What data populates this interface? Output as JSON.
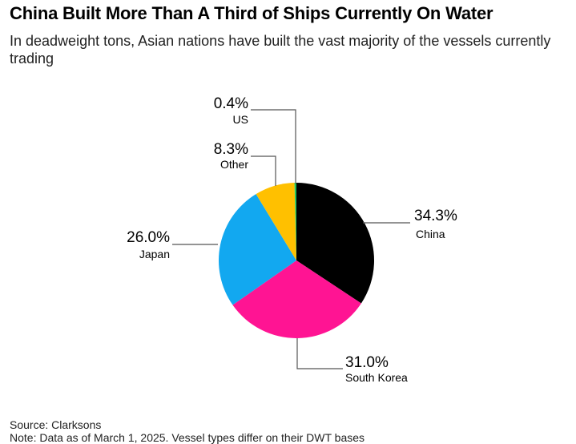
{
  "header": {
    "title": "China Built More Than A Third of Ships Currently On Water",
    "subtitle": "In deadweight tons, Asian nations have built the vast majority of the vessels currently trading"
  },
  "chart_data": {
    "type": "pie",
    "slices": [
      {
        "label": "China",
        "value": 34.3,
        "value_label": "34.3%",
        "color": "#000000"
      },
      {
        "label": "South Korea",
        "value": 31.0,
        "value_label": "31.0%",
        "color": "#ff1493"
      },
      {
        "label": "Japan",
        "value": 26.0,
        "value_label": "26.0%",
        "color": "#12a8f0"
      },
      {
        "label": "Other",
        "value": 8.3,
        "value_label": "8.3%",
        "color": "#ffc000"
      },
      {
        "label": "US",
        "value": 0.4,
        "value_label": "0.4%",
        "color": "#22c55e"
      }
    ],
    "start": "12 o'clock",
    "direction": "clockwise"
  },
  "footer": {
    "source": "Source: Clarksons",
    "note": "Note: Data as of March 1, 2025. Vessel types differ on their DWT bases"
  }
}
